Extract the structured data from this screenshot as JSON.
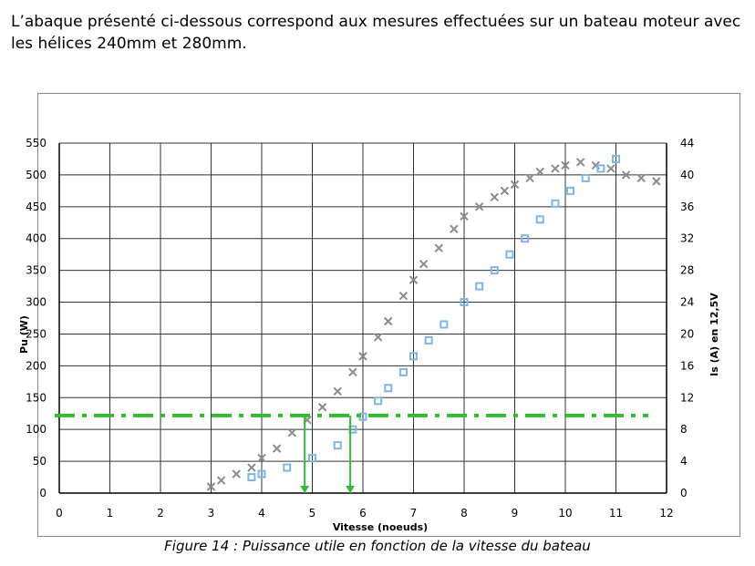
{
  "intro_text": "L’abaque présenté ci-dessous correspond aux mesures effectuées sur un bateau moteur avec les hélices 240mm et 280mm.",
  "caption": "Figure 14 : Puissance utile en fonction de la vitesse du bateau",
  "chart_data": {
    "type": "scatter",
    "title": "",
    "xlabel": "Vitesse (noeuds)",
    "ylabel": "Pu (W)",
    "y2label": "Is (A) en 12,5V",
    "xlim": [
      0,
      12
    ],
    "ylim": [
      0,
      550
    ],
    "y2lim": [
      0,
      44
    ],
    "x_ticks": [
      "0",
      "1",
      "2",
      "3",
      "4",
      "5",
      "6",
      "7",
      "8",
      "9",
      "10",
      "11",
      "12"
    ],
    "y_ticks": [
      "0",
      "50",
      "100",
      "150",
      "200",
      "250",
      "300",
      "350",
      "400",
      "450",
      "500",
      "550"
    ],
    "y2_ticks": [
      "0",
      "4",
      "8",
      "12",
      "16",
      "20",
      "24",
      "28",
      "32",
      "36",
      "40",
      "44"
    ],
    "grid": true,
    "colors": {
      "gray": "#8c8c8c",
      "blue": "#7fb6ea",
      "green": "#33bb33"
    },
    "series": [
      {
        "marker": "x",
        "color": "gray",
        "points": [
          [
            3.0,
            10
          ],
          [
            3.2,
            20
          ],
          [
            3.5,
            30
          ],
          [
            3.8,
            40
          ],
          [
            4.0,
            55
          ],
          [
            4.3,
            70
          ],
          [
            4.6,
            95
          ],
          [
            4.9,
            115
          ],
          [
            5.2,
            135
          ],
          [
            5.5,
            160
          ],
          [
            5.8,
            190
          ],
          [
            6.0,
            215
          ],
          [
            6.3,
            245
          ],
          [
            6.5,
            270
          ],
          [
            6.8,
            310
          ],
          [
            7.0,
            335
          ],
          [
            7.2,
            360
          ],
          [
            7.5,
            385
          ],
          [
            7.8,
            415
          ],
          [
            8.0,
            435
          ],
          [
            8.3,
            450
          ],
          [
            8.6,
            465
          ],
          [
            8.8,
            475
          ],
          [
            9.0,
            485
          ],
          [
            9.3,
            495
          ],
          [
            9.5,
            505
          ],
          [
            9.8,
            510
          ],
          [
            10.0,
            515
          ],
          [
            10.3,
            520
          ],
          [
            10.6,
            515
          ],
          [
            10.9,
            510
          ],
          [
            11.2,
            500
          ],
          [
            11.5,
            495
          ],
          [
            11.8,
            490
          ]
        ]
      },
      {
        "marker": "square",
        "color": "blue",
        "points": [
          [
            3.8,
            25
          ],
          [
            4.0,
            30
          ],
          [
            4.5,
            40
          ],
          [
            5.0,
            55
          ],
          [
            5.5,
            75
          ],
          [
            5.8,
            100
          ],
          [
            6.0,
            120
          ],
          [
            6.3,
            145
          ],
          [
            6.5,
            165
          ],
          [
            6.8,
            190
          ],
          [
            7.0,
            215
          ],
          [
            7.3,
            240
          ],
          [
            7.6,
            265
          ],
          [
            8.0,
            300
          ],
          [
            8.3,
            325
          ],
          [
            8.6,
            350
          ],
          [
            8.9,
            375
          ],
          [
            9.2,
            400
          ],
          [
            9.5,
            430
          ],
          [
            9.8,
            455
          ],
          [
            10.1,
            475
          ],
          [
            10.4,
            495
          ],
          [
            10.7,
            510
          ],
          [
            11.0,
            525
          ]
        ]
      }
    ],
    "annotations": [
      {
        "type": "hline",
        "y": 122,
        "style": "dash-dot",
        "color": "green"
      },
      {
        "type": "vline",
        "x": 4.85,
        "y_top": 122,
        "color": "green"
      },
      {
        "type": "vline",
        "x": 5.75,
        "y_top": 122,
        "color": "green"
      }
    ]
  }
}
